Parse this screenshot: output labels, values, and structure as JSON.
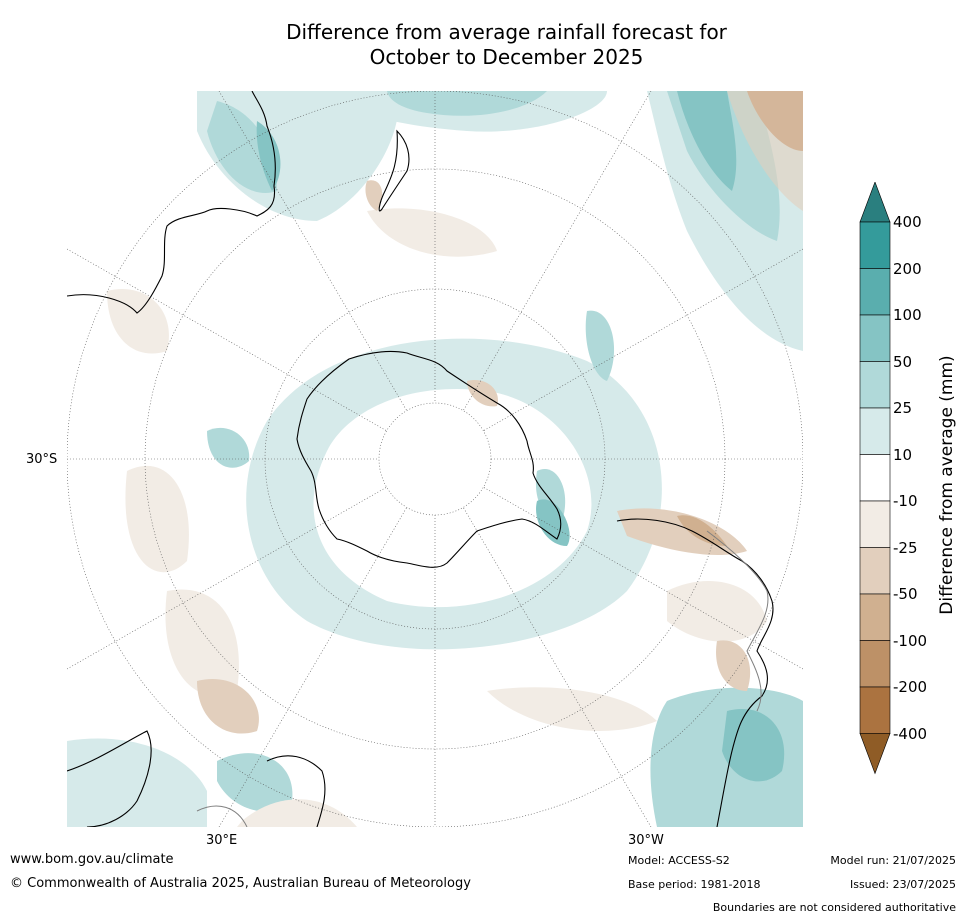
{
  "title": {
    "line1": "Difference from average rainfall forecast for",
    "line2": "October to December 2025"
  },
  "map": {
    "projection": "south polar stereographic",
    "lat_label": "30°S",
    "lon_labels": {
      "east": "30°E",
      "west": "30°W"
    },
    "colors": {
      "land_outline": "#000000",
      "boundary": "#808080",
      "graticule": "#555555"
    }
  },
  "legend": {
    "title": "Difference from average (mm)",
    "ticks": [
      "400",
      "200",
      "100",
      "50",
      "25",
      "10",
      "-10",
      "-25",
      "-50",
      "-100",
      "-200",
      "-400"
    ],
    "bins": [
      {
        "range": ">400",
        "color": "#2a7f7f"
      },
      {
        "range": "200–400",
        "color": "#349b9b"
      },
      {
        "range": "100–200",
        "color": "#5aaeae"
      },
      {
        "range": "50–100",
        "color": "#85c4c4"
      },
      {
        "range": "25–50",
        "color": "#b0d9d9"
      },
      {
        "range": "10–25",
        "color": "#d6eaea"
      },
      {
        "range": "-10–10",
        "color": "#ffffff"
      },
      {
        "range": "-25–-10",
        "color": "#f2ece5"
      },
      {
        "range": "-50–-25",
        "color": "#e2cfbd"
      },
      {
        "range": "-100–-50",
        "color": "#d0b090"
      },
      {
        "range": "-200–-100",
        "color": "#bd9167"
      },
      {
        "range": "-400–-200",
        "color": "#ab7340"
      },
      {
        "range": "<-400",
        "color": "#8f5c26"
      }
    ]
  },
  "footer": {
    "website": "www.bom.gov.au/climate",
    "copyright": "© Commonwealth of Australia 2025, Australian Bureau of Meteorology",
    "model": "Model: ACCESS-S2",
    "base_period": "Base period: 1981-2018",
    "model_run": "Model run: 21/07/2025",
    "issued": "Issued: 23/07/2025",
    "disclaimer": "Boundaries are not considered authoritative"
  }
}
